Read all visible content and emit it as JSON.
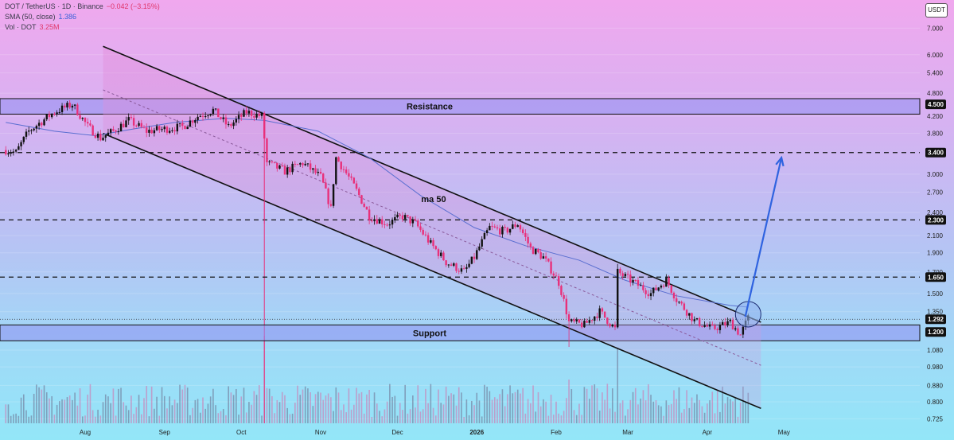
{
  "header": {
    "symbol_line": "DOT / TetherUS · 1D · Binance",
    "change": "−0.042 (−3.15%)",
    "sma_label": "SMA (50, close)",
    "sma_value": "1.386",
    "vol_label": "Vol · DOT",
    "vol_value": "3.25M"
  },
  "currency": "USDT",
  "colors": {
    "up": "#111111",
    "down": "#e8307a",
    "sma": "#5a6fd0",
    "arrow": "#2f63e0",
    "zone": "#8f90f2",
    "channel": "#c580d6"
  },
  "chart_data": {
    "type": "candlestick",
    "y_scale": "log",
    "ylim": [
      0.7,
      8.0
    ],
    "y_ticks": [
      "7.000",
      "6.000",
      "5.400",
      "4.800",
      "4.200",
      "3.800",
      "3.000",
      "2.700",
      "2.400",
      "2.100",
      "1.900",
      "1.700",
      "1.500",
      "1.350",
      "1.080",
      "0.980",
      "0.880",
      "0.800",
      "0.725"
    ],
    "x_labels": [
      "Aug",
      "Sep",
      "Oct",
      "Nov",
      "Dec",
      "2026",
      "Feb",
      "Mar",
      "Apr",
      "May"
    ],
    "price_labels": [
      "4.500",
      "3.400",
      "2.300",
      "1.650",
      "1.292",
      "1.200"
    ],
    "zones": [
      {
        "label": "Resistance",
        "low": 4.25,
        "high": 4.65
      },
      {
        "label": "Support",
        "low": 1.14,
        "high": 1.25
      }
    ],
    "levels": [
      3.4,
      2.3,
      1.65
    ],
    "current_price": 1.292,
    "annotations": [
      "ma 50"
    ],
    "channel": {
      "upper": [
        [
          "Aug 8",
          6.3
        ],
        [
          "Apr 22",
          1.27
        ]
      ],
      "lower": [
        [
          "Aug 8",
          3.8
        ],
        [
          "Apr 22",
          0.77
        ]
      ]
    },
    "projection_arrow": [
      [
        "Apr 14",
        1.31
      ],
      [
        "Apr 30",
        3.3
      ]
    ],
    "price_waypoints": [
      [
        "Jul 1",
        3.45
      ],
      [
        "Jul 5",
        3.4
      ],
      [
        "Jul 10",
        3.85
      ],
      [
        "Jul 20",
        4.3
      ],
      [
        "Jul 27",
        4.5
      ],
      [
        "Aug 2",
        3.95
      ],
      [
        "Aug 7",
        3.7
      ],
      [
        "Aug 12",
        3.85
      ],
      [
        "Aug 18",
        4.1
      ],
      [
        "Aug 25",
        3.85
      ],
      [
        "Sep 1",
        3.9
      ],
      [
        "Sep 8",
        3.95
      ],
      [
        "Sep 14",
        4.2
      ],
      [
        "Sep 20",
        4.35
      ],
      [
        "Sep 26",
        3.95
      ],
      [
        "Oct 3",
        4.3
      ],
      [
        "Oct 9",
        4.2
      ],
      [
        "Oct 11",
        3.2
      ],
      [
        "Oct 18",
        3.05
      ],
      [
        "Oct 25",
        3.2
      ],
      [
        "Nov 1",
        2.95
      ],
      [
        "Nov 5",
        2.45
      ],
      [
        "Nov 7",
        3.3
      ],
      [
        "Nov 14",
        2.8
      ],
      [
        "Nov 20",
        2.35
      ],
      [
        "Nov 27",
        2.25
      ],
      [
        "Dec 3",
        2.35
      ],
      [
        "Dec 8",
        2.25
      ],
      [
        "Dec 14",
        2.0
      ],
      [
        "Dec 20",
        1.8
      ],
      [
        "Dec 27",
        1.7
      ],
      [
        "Dec 31",
        1.85
      ],
      [
        "Jan 6",
        2.2
      ],
      [
        "Jan 12",
        2.15
      ],
      [
        "Jan 17",
        2.25
      ],
      [
        "Jan 22",
        1.95
      ],
      [
        "Jan 27",
        1.85
      ],
      [
        "Feb 2",
        1.6
      ],
      [
        "Feb 6",
        1.27
      ],
      [
        "Feb 12",
        1.25
      ],
      [
        "Feb 18",
        1.35
      ],
      [
        "Feb 24",
        1.22
      ],
      [
        "Feb 25",
        1.7
      ],
      [
        "Mar 2",
        1.62
      ],
      [
        "Mar 10",
        1.5
      ],
      [
        "Mar 16",
        1.62
      ],
      [
        "Mar 20",
        1.45
      ],
      [
        "Mar 27",
        1.28
      ],
      [
        "Apr 3",
        1.22
      ],
      [
        "Apr 10",
        1.27
      ],
      [
        "Apr 14",
        1.18
      ],
      [
        "Apr 17",
        1.3
      ]
    ],
    "sma_waypoints": [
      [
        "Jul 1",
        4.05
      ],
      [
        "Jul 20",
        3.85
      ],
      [
        "Aug 5",
        3.75
      ],
      [
        "Aug 20",
        3.9
      ],
      [
        "Sep 5",
        4.05
      ],
      [
        "Sep 25",
        4.15
      ],
      [
        "Oct 10",
        4.1
      ],
      [
        "Oct 31",
        3.85
      ],
      [
        "Nov 20",
        3.3
      ],
      [
        "Dec 10",
        2.65
      ],
      [
        "Dec 31",
        2.2
      ],
      [
        "Jan 20",
        1.98
      ],
      [
        "Feb 10",
        1.82
      ],
      [
        "Feb 28",
        1.62
      ],
      [
        "Mar 20",
        1.48
      ],
      [
        "Apr 10",
        1.4
      ],
      [
        "Apr 17",
        1.386
      ]
    ]
  }
}
